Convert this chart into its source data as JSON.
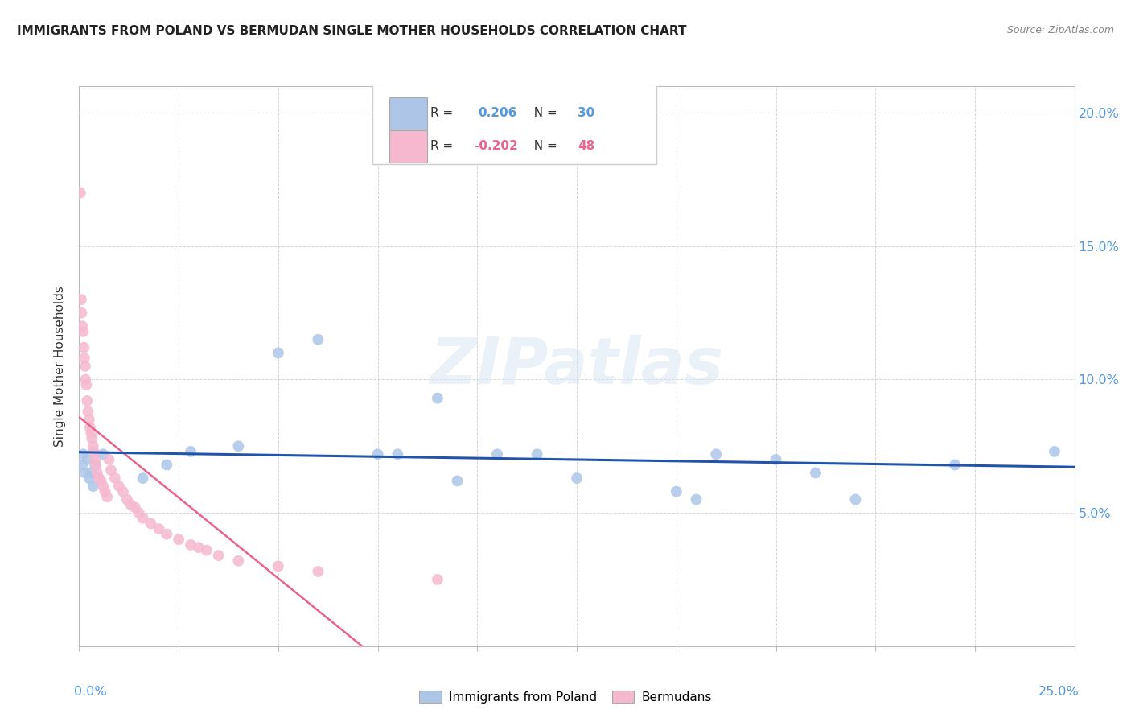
{
  "title": "IMMIGRANTS FROM POLAND VS BERMUDAN SINGLE MOTHER HOUSEHOLDS CORRELATION CHART",
  "source": "Source: ZipAtlas.com",
  "ylabel": "Single Mother Households",
  "xlim": [
    0.0,
    0.25
  ],
  "ylim": [
    0.0,
    0.21
  ],
  "yticks": [
    0.0,
    0.05,
    0.1,
    0.15,
    0.2
  ],
  "ytick_labels": [
    "",
    "5.0%",
    "10.0%",
    "15.0%",
    "20.0%"
  ],
  "blue_color": "#adc6e8",
  "pink_color": "#f5b8cf",
  "blue_line_color": "#2255aa",
  "pink_line_color": "#e8648c",
  "pink_dash_color": "#f0b0c8",
  "watermark": "ZIPatlas",
  "poland_x": [
    0.0008,
    0.001,
    0.0015,
    0.002,
    0.0025,
    0.003,
    0.0035,
    0.004,
    0.006,
    0.016,
    0.022,
    0.028,
    0.04,
    0.05,
    0.06,
    0.075,
    0.09,
    0.105,
    0.115,
    0.125,
    0.155,
    0.175,
    0.185,
    0.195,
    0.22,
    0.245,
    0.08,
    0.095,
    0.15,
    0.16
  ],
  "poland_y": [
    0.068,
    0.072,
    0.065,
    0.07,
    0.063,
    0.065,
    0.06,
    0.068,
    0.072,
    0.063,
    0.068,
    0.073,
    0.075,
    0.11,
    0.115,
    0.072,
    0.093,
    0.072,
    0.072,
    0.063,
    0.055,
    0.07,
    0.065,
    0.055,
    0.068,
    0.073,
    0.072,
    0.062,
    0.058,
    0.072
  ],
  "bermuda_x": [
    0.0003,
    0.0005,
    0.0006,
    0.0008,
    0.001,
    0.0012,
    0.0013,
    0.0015,
    0.0016,
    0.0018,
    0.002,
    0.0022,
    0.0025,
    0.0027,
    0.003,
    0.0032,
    0.0035,
    0.0037,
    0.004,
    0.0042,
    0.0045,
    0.005,
    0.0055,
    0.006,
    0.0065,
    0.007,
    0.0075,
    0.008,
    0.009,
    0.01,
    0.011,
    0.012,
    0.013,
    0.014,
    0.015,
    0.016,
    0.018,
    0.02,
    0.022,
    0.025,
    0.028,
    0.03,
    0.032,
    0.035,
    0.04,
    0.05,
    0.06,
    0.09
  ],
  "bermuda_y": [
    0.17,
    0.13,
    0.125,
    0.12,
    0.118,
    0.112,
    0.108,
    0.105,
    0.1,
    0.098,
    0.092,
    0.088,
    0.085,
    0.082,
    0.08,
    0.078,
    0.075,
    0.073,
    0.07,
    0.068,
    0.065,
    0.063,
    0.062,
    0.06,
    0.058,
    0.056,
    0.07,
    0.066,
    0.063,
    0.06,
    0.058,
    0.055,
    0.053,
    0.052,
    0.05,
    0.048,
    0.046,
    0.044,
    0.042,
    0.04,
    0.038,
    0.037,
    0.036,
    0.034,
    0.032,
    0.03,
    0.028,
    0.025
  ]
}
